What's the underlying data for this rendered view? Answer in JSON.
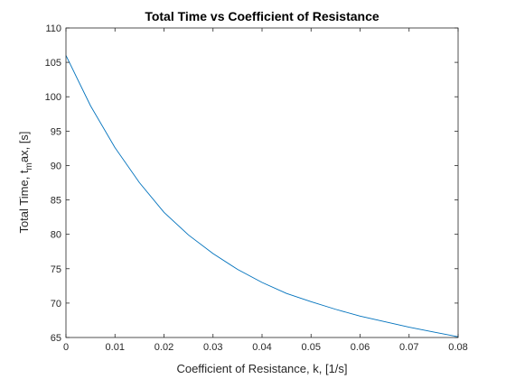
{
  "chart_data": {
    "type": "line",
    "title": "Total Time vs Coefficient of Resistance",
    "xlabel": "Coefficient of Resistance, k, [1/s]",
    "ylabel": {
      "main": "Total Time, t",
      "subscript": "m",
      "rest": "ax, [s]"
    },
    "xlim": [
      0,
      0.08
    ],
    "ylim": [
      65,
      110
    ],
    "xticks": [
      "0",
      "0.01",
      "0.02",
      "0.03",
      "0.04",
      "0.05",
      "0.06",
      "0.07",
      "0.08"
    ],
    "yticks": [
      "65",
      "70",
      "75",
      "80",
      "85",
      "90",
      "95",
      "100",
      "105",
      "110"
    ],
    "grid": false,
    "series": [
      {
        "color": "#0072BD",
        "x": [
          0,
          0.005,
          0.01,
          0.015,
          0.02,
          0.025,
          0.03,
          0.035,
          0.04,
          0.045,
          0.05,
          0.055,
          0.06,
          0.065,
          0.07,
          0.075,
          0.08
        ],
        "y": [
          106,
          98.7,
          92.6,
          87.5,
          83.2,
          79.9,
          77.2,
          74.9,
          73.0,
          71.4,
          70.2,
          69.1,
          68.1,
          67.3,
          66.5,
          65.8,
          65.1
        ]
      }
    ]
  }
}
